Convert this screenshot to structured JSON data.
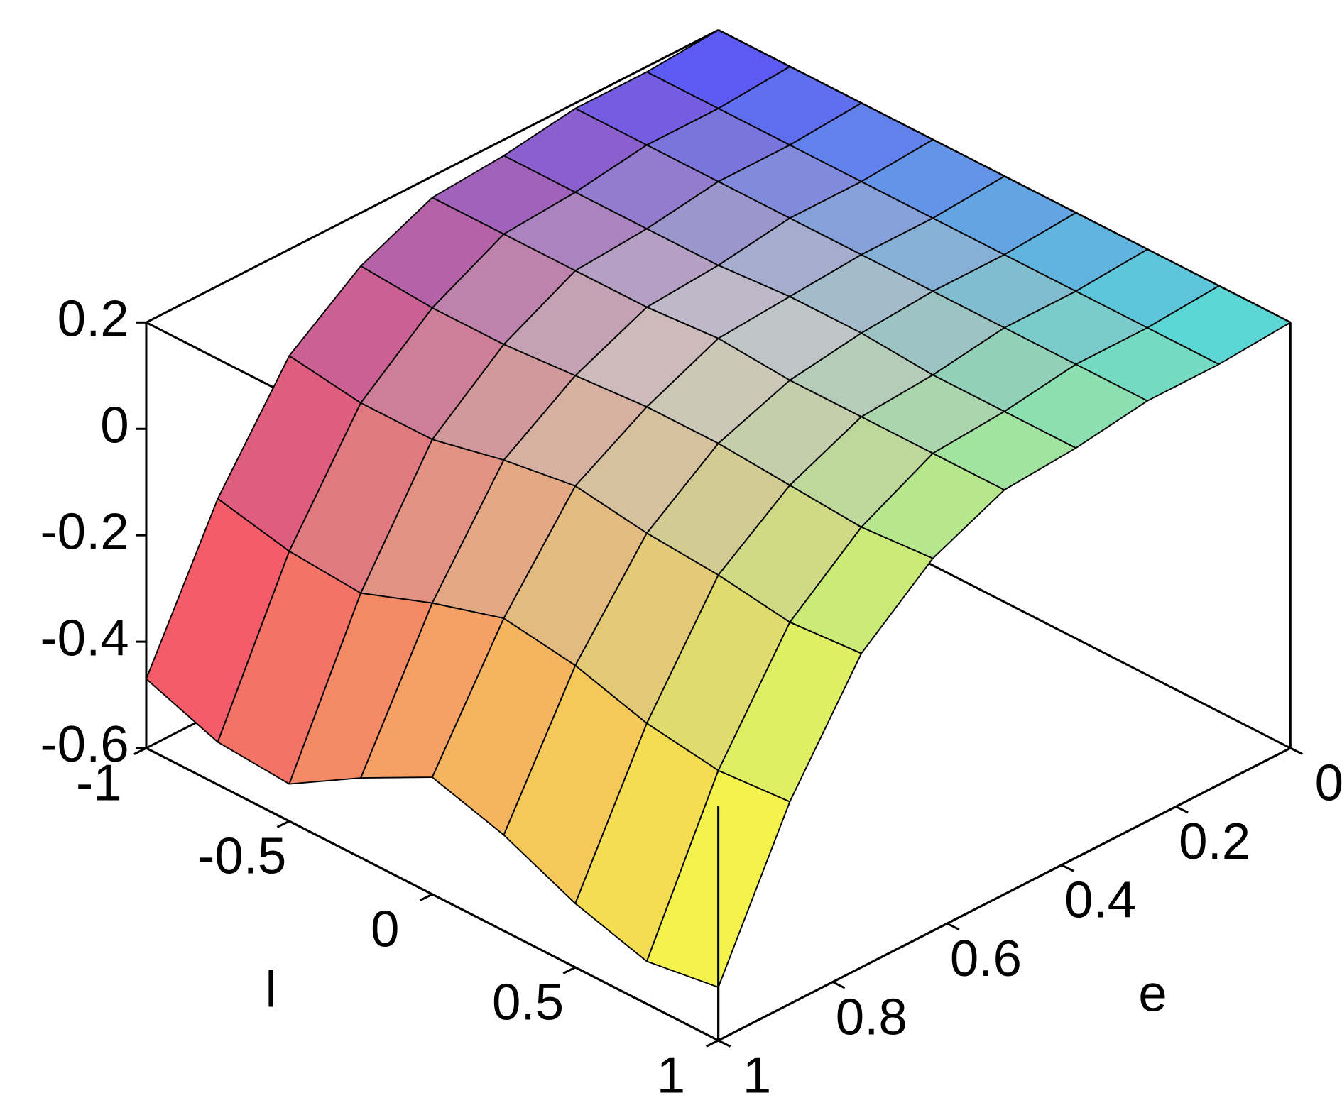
{
  "chart_data": {
    "type": "surface",
    "xlabel": "l",
    "ylabel": "e",
    "x": [
      -1,
      -0.75,
      -0.5,
      -0.25,
      0,
      0.25,
      0.5,
      0.75,
      1
    ],
    "y": [
      0,
      0.125,
      0.25,
      0.375,
      0.5,
      0.625,
      0.75,
      0.875,
      1
    ],
    "z": [
      [
        0.2,
        0.19,
        0.19,
        0.17,
        0.16,
        0.1,
        0.0,
        -0.2,
        -0.47
      ],
      [
        0.2,
        0.19,
        0.19,
        0.17,
        0.16,
        0.09,
        -0.02,
        -0.23,
        -0.52
      ],
      [
        0.2,
        0.19,
        0.19,
        0.17,
        0.16,
        0.09,
        -0.02,
        -0.24,
        -0.53
      ],
      [
        0.2,
        0.19,
        0.19,
        0.17,
        0.16,
        0.1,
        0.01,
        -0.19,
        -0.45
      ],
      [
        0.2,
        0.19,
        0.19,
        0.18,
        0.17,
        0.11,
        0.03,
        -0.15,
        -0.38
      ],
      [
        0.2,
        0.19,
        0.19,
        0.18,
        0.16,
        0.11,
        0.01,
        -0.17,
        -0.42
      ],
      [
        0.2,
        0.19,
        0.19,
        0.17,
        0.16,
        0.1,
        0.0,
        -0.21,
        -0.48
      ],
      [
        0.2,
        0.19,
        0.19,
        0.17,
        0.16,
        0.09,
        -0.02,
        -0.23,
        -0.52
      ],
      [
        0.2,
        0.19,
        0.19,
        0.17,
        0.16,
        0.1,
        -0.01,
        -0.22,
        -0.5
      ]
    ],
    "xlim": [
      -1,
      1
    ],
    "ylim": [
      0,
      1
    ],
    "zlim": [
      -0.6,
      0.2
    ],
    "xticks": [
      -1,
      -0.5,
      0,
      0.5,
      1
    ],
    "yticks": [
      0,
      0.2,
      0.4,
      0.6,
      0.8,
      1
    ],
    "zticks": [
      -0.6,
      -0.4,
      -0.2,
      0,
      0.2
    ],
    "corner_colors": {
      "xmin_ymin": "#5050ff",
      "xmax_ymin": "#50dcdc",
      "xmin_ymax": "#ff5060",
      "xmax_ymax": "#ffff40"
    },
    "mesh_color": "#000000"
  }
}
